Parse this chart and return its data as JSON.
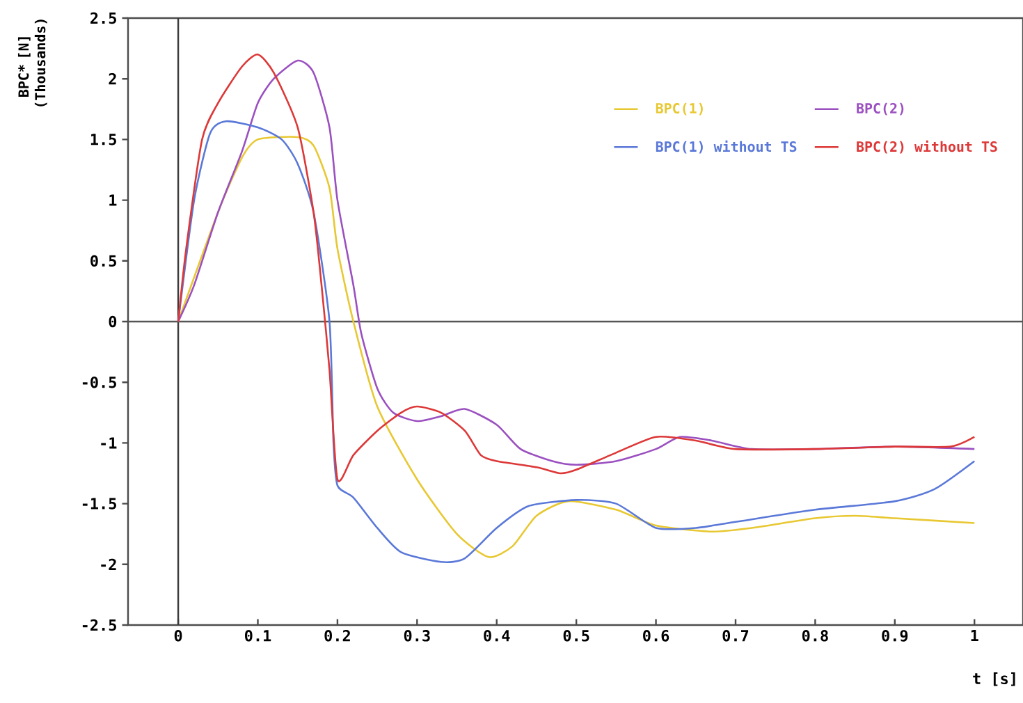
{
  "chart_data": {
    "type": "line",
    "xlabel": "t [s]",
    "ylabel": "BPC* [N] (Thousands)",
    "xlim": [
      -0.063,
      1.061
    ],
    "ylim": [
      -2.5,
      2.5
    ],
    "xticks": [
      0,
      0.1,
      0.2,
      0.3,
      0.4,
      0.5,
      0.6,
      0.7,
      0.8,
      0.9,
      1
    ],
    "yticks": [
      -2.5,
      -2,
      -1.5,
      -1,
      -0.5,
      0,
      0.5,
      1,
      1.5,
      2,
      2.5
    ],
    "legend": "top right",
    "grid": false,
    "marker": "none",
    "line_style": "solid",
    "ref_lines": [
      {
        "axis": "x",
        "value": 0,
        "color": "#3c3c3c"
      },
      {
        "axis": "y",
        "value": 0,
        "color": "#555555"
      }
    ],
    "series": [
      {
        "name": "BPC(1)",
        "color": "#e8c832",
        "x": [
          0,
          0.05,
          0.08,
          0.1,
          0.15,
          0.17,
          0.19,
          0.2,
          0.22,
          0.25,
          0.3,
          0.35,
          0.39,
          0.42,
          0.45,
          0.49,
          0.55,
          0.6,
          0.67,
          0.72,
          0.8,
          0.85,
          0.9,
          1.0
        ],
        "values": [
          0,
          0.9,
          1.35,
          1.5,
          1.52,
          1.45,
          1.1,
          0.6,
          0,
          -0.7,
          -1.3,
          -1.75,
          -1.94,
          -1.85,
          -1.6,
          -1.48,
          -1.55,
          -1.68,
          -1.73,
          -1.7,
          -1.62,
          -1.6,
          -1.62,
          -1.66
        ]
      },
      {
        "name": "BPC(2)",
        "color": "#9b50c0",
        "x": [
          0,
          0.02,
          0.05,
          0.08,
          0.1,
          0.12,
          0.15,
          0.17,
          0.19,
          0.2,
          0.22,
          0.23,
          0.25,
          0.27,
          0.3,
          0.33,
          0.36,
          0.4,
          0.43,
          0.47,
          0.5,
          0.55,
          0.6,
          0.63,
          0.67,
          0.72,
          0.8,
          0.9,
          1.0
        ],
        "values": [
          0,
          0.3,
          0.9,
          1.4,
          1.8,
          2.0,
          2.15,
          2.05,
          1.6,
          1.0,
          0.3,
          -0.1,
          -0.55,
          -0.75,
          -0.82,
          -0.78,
          -0.72,
          -0.85,
          -1.05,
          -1.15,
          -1.18,
          -1.15,
          -1.05,
          -0.95,
          -0.98,
          -1.05,
          -1.05,
          -1.03,
          -1.05
        ]
      },
      {
        "name": "BPC(1) without TS",
        "color": "#5a78d8",
        "x": [
          0,
          0.02,
          0.04,
          0.06,
          0.1,
          0.13,
          0.15,
          0.17,
          0.19,
          0.195,
          0.2,
          0.22,
          0.25,
          0.28,
          0.33,
          0.36,
          0.4,
          0.44,
          0.5,
          0.55,
          0.6,
          0.65,
          0.7,
          0.8,
          0.9,
          0.95,
          1.0
        ],
        "values": [
          0,
          1.0,
          1.55,
          1.65,
          1.6,
          1.5,
          1.3,
          0.9,
          0,
          -1.0,
          -1.35,
          -1.45,
          -1.7,
          -1.9,
          -1.98,
          -1.95,
          -1.7,
          -1.52,
          -1.47,
          -1.5,
          -1.7,
          -1.7,
          -1.65,
          -1.55,
          -1.48,
          -1.38,
          -1.15
        ]
      },
      {
        "name": "BPC(2) without TS",
        "color": "#dd3838",
        "x": [
          0,
          0.01,
          0.03,
          0.05,
          0.08,
          0.1,
          0.12,
          0.15,
          0.17,
          0.18,
          0.19,
          0.2,
          0.22,
          0.25,
          0.28,
          0.3,
          0.33,
          0.36,
          0.38,
          0.4,
          0.45,
          0.48,
          0.5,
          0.55,
          0.6,
          0.65,
          0.7,
          0.8,
          0.9,
          0.97,
          1.0
        ],
        "values": [
          0,
          0.6,
          1.5,
          1.8,
          2.1,
          2.2,
          2.05,
          1.6,
          0.9,
          0.3,
          -0.4,
          -1.3,
          -1.1,
          -0.9,
          -0.75,
          -0.7,
          -0.75,
          -0.9,
          -1.1,
          -1.15,
          -1.2,
          -1.25,
          -1.22,
          -1.08,
          -0.95,
          -0.98,
          -1.05,
          -1.05,
          -1.03,
          -1.03,
          -0.95
        ]
      }
    ]
  }
}
